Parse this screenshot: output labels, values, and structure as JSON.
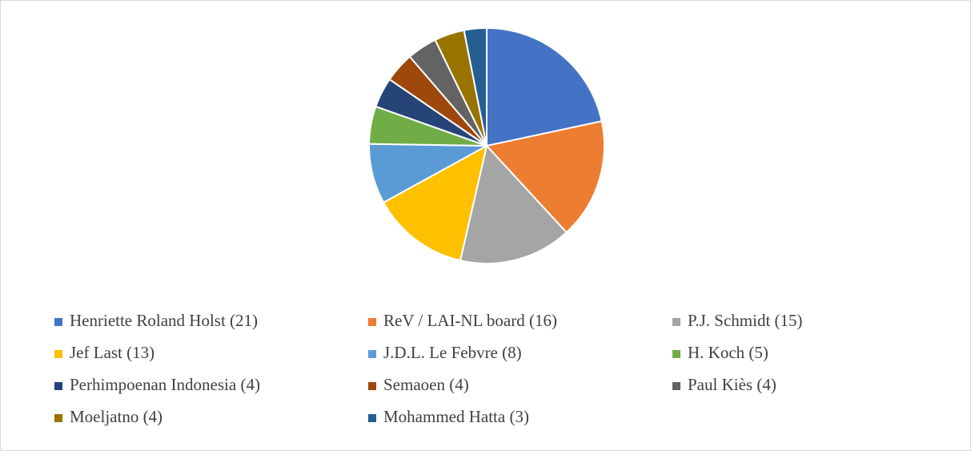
{
  "chart_data": {
    "type": "pie",
    "categories": [
      "Henriette Roland Holst (21)",
      "ReV / LAI-NL board (16)",
      "P.J. Schmidt (15)",
      "Jef  Last (13)",
      "J.D.L. Le Febvre (8)",
      "H. Koch (5)",
      "Perhimpoenan Indonesia (4)",
      "Semaoen (4)",
      "Paul Kiès (4)",
      "Moeljatno (4)",
      "Mohammed Hatta (3)"
    ],
    "values": [
      21,
      16,
      15,
      13,
      8,
      5,
      4,
      4,
      4,
      4,
      3
    ],
    "colors": [
      "#4472c4",
      "#ed7d31",
      "#a5a5a5",
      "#ffc000",
      "#5b9bd5",
      "#70ad47",
      "#264478",
      "#9e480e",
      "#636363",
      "#997300",
      "#255e91"
    ],
    "legend": "bottom"
  }
}
